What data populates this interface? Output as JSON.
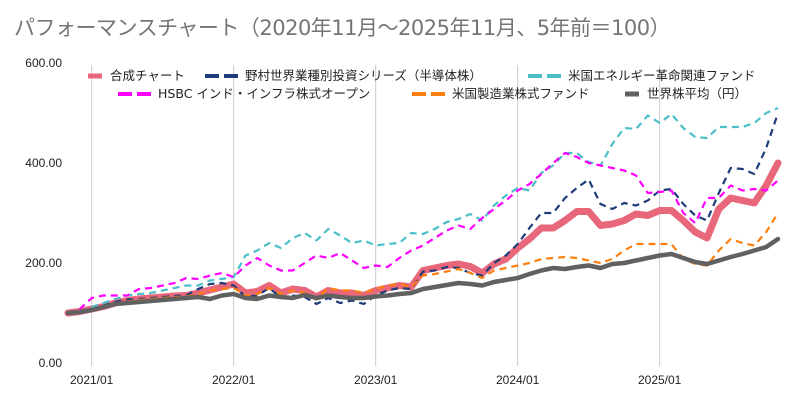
{
  "chart_data": {
    "type": "line",
    "title": "パフォーマンスチャート（2020年11月〜2025年11月、5年前＝100）",
    "xlabel": "",
    "ylabel": "",
    "ylim": [
      0,
      600
    ],
    "y_ticks": [
      "0.00",
      "200.00",
      "400.00",
      "600.00"
    ],
    "y_tick_values": [
      0,
      200,
      400,
      600
    ],
    "x_start": "2020/11",
    "x_end": "2025/11",
    "x_ticks": [
      "2021/01",
      "2022/01",
      "2023/01",
      "2024/01",
      "2025/01"
    ],
    "x_tick_month_index": [
      2,
      14,
      26,
      38,
      50
    ],
    "grid": "vertical lines at year ticks",
    "legend_position": "top",
    "series": [
      {
        "name": "合成チャート",
        "color": "#e8677a",
        "style": "solid-thick",
        "values": [
          100,
          103,
          108,
          113,
          120,
          125,
          128,
          130,
          132,
          134,
          135,
          140,
          146,
          152,
          158,
          140,
          143,
          155,
          140,
          148,
          145,
          132,
          145,
          140,
          140,
          135,
          145,
          150,
          155,
          152,
          185,
          190,
          195,
          198,
          193,
          180,
          198,
          208,
          230,
          248,
          270,
          270,
          285,
          303,
          303,
          275,
          278,
          285,
          298,
          295,
          305,
          305,
          285,
          262,
          250,
          308,
          330,
          325,
          320,
          355,
          400
        ]
      },
      {
        "name": "野村世界業種別投資シリーズ（半導体株）",
        "color": "#1f3c7a",
        "style": "dashed",
        "values": [
          100,
          102,
          107,
          115,
          122,
          127,
          128,
          130,
          132,
          134,
          135,
          148,
          158,
          160,
          155,
          132,
          135,
          150,
          130,
          135,
          132,
          118,
          130,
          120,
          125,
          118,
          135,
          145,
          150,
          148,
          183,
          185,
          192,
          190,
          180,
          175,
          200,
          215,
          238,
          270,
          300,
          300,
          330,
          350,
          367,
          318,
          308,
          320,
          315,
          325,
          345,
          348,
          318,
          295,
          285,
          340,
          390,
          388,
          378,
          430,
          500
        ]
      },
      {
        "name": "米国エネルギー革命関連ファンド",
        "color": "#4bbfc8",
        "style": "dashed",
        "values": [
          100,
          103,
          112,
          120,
          128,
          135,
          138,
          140,
          145,
          150,
          155,
          155,
          165,
          168,
          172,
          215,
          225,
          240,
          230,
          250,
          260,
          245,
          268,
          255,
          240,
          245,
          235,
          238,
          240,
          260,
          258,
          268,
          282,
          288,
          298,
          285,
          315,
          335,
          350,
          345,
          380,
          395,
          420,
          420,
          402,
          395,
          438,
          470,
          468,
          495,
          480,
          498,
          470,
          452,
          450,
          472,
          472,
          472,
          480,
          500,
          510
        ]
      },
      {
        "name": "HSBC インド・インフラ株式オープン",
        "color": "#ff00ff",
        "style": "dashed",
        "values": [
          100,
          108,
          130,
          135,
          135,
          135,
          148,
          150,
          155,
          160,
          170,
          168,
          175,
          180,
          172,
          195,
          210,
          195,
          185,
          185,
          200,
          215,
          210,
          220,
          205,
          190,
          195,
          192,
          210,
          225,
          235,
          250,
          265,
          275,
          268,
          290,
          308,
          325,
          345,
          358,
          378,
          400,
          420,
          412,
          400,
          395,
          390,
          385,
          375,
          340,
          342,
          345,
          300,
          280,
          330,
          330,
          355,
          345,
          348,
          345,
          365
        ]
      },
      {
        "name": "米国製造業株式ファンド",
        "color": "#ff7f0e",
        "style": "dashed",
        "values": [
          100,
          102,
          106,
          112,
          120,
          123,
          126,
          128,
          130,
          132,
          133,
          138,
          145,
          148,
          150,
          135,
          138,
          150,
          138,
          145,
          140,
          130,
          150,
          145,
          145,
          140,
          148,
          155,
          158,
          152,
          175,
          178,
          183,
          188,
          180,
          170,
          185,
          190,
          195,
          200,
          208,
          210,
          212,
          210,
          205,
          200,
          208,
          225,
          238,
          238,
          238,
          238,
          208,
          198,
          195,
          225,
          248,
          240,
          235,
          262,
          300
        ]
      },
      {
        "name": "世界株平均（円）",
        "color": "#616161",
        "style": "solid",
        "values": [
          100,
          102,
          106,
          112,
          118,
          120,
          122,
          124,
          126,
          128,
          130,
          132,
          128,
          135,
          138,
          130,
          128,
          135,
          132,
          130,
          136,
          130,
          135,
          132,
          130,
          130,
          133,
          135,
          138,
          140,
          148,
          152,
          156,
          160,
          158,
          155,
          162,
          166,
          170,
          178,
          185,
          190,
          188,
          192,
          195,
          190,
          198,
          200,
          205,
          210,
          215,
          218,
          210,
          202,
          198,
          205,
          212,
          218,
          225,
          232,
          248
        ]
      }
    ]
  }
}
